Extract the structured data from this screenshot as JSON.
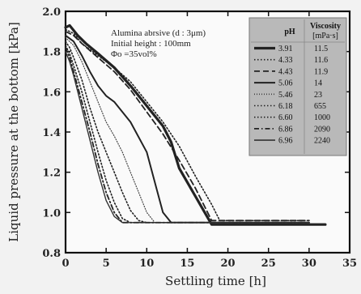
{
  "chart_data": {
    "type": "line",
    "xlabel": "Settling time  [h]",
    "ylabel": "Liquid pressure at the bottom [kPa]",
    "xlim": [
      0,
      35
    ],
    "ylim": [
      0.8,
      2.0
    ],
    "xticks": [
      "0",
      "5",
      "10",
      "15",
      "20",
      "25",
      "30",
      "35"
    ],
    "yticks": [
      "0.8",
      "1.0",
      "1.2",
      "1.4",
      "1.6",
      "1.8",
      "2.0"
    ],
    "annotation": [
      "Alumina abrsive (d : 3μm)",
      "Initial height : 100mm",
      "Φo =35vol%"
    ],
    "legend": {
      "placement": "top-right",
      "col1_header": "pH",
      "col2_header": "Viscosity",
      "col2_unit": "[mPa·s]",
      "background": "#b9b9b9"
    },
    "series": [
      {
        "name": "3.91",
        "viscosity": "11.5",
        "style": "solid-thick",
        "x": [
          0,
          0.5,
          1.5,
          2.5,
          4,
          6,
          8,
          10,
          12,
          13,
          14,
          16,
          18,
          32
        ],
        "y": [
          1.92,
          1.93,
          1.88,
          1.84,
          1.79,
          1.72,
          1.63,
          1.53,
          1.43,
          1.35,
          1.22,
          1.08,
          0.94,
          0.94
        ]
      },
      {
        "name": "4.33",
        "viscosity": "11.6",
        "style": "dotted",
        "x": [
          0,
          1,
          2,
          4,
          6,
          8,
          10,
          12,
          14,
          16,
          18,
          19,
          30
        ],
        "y": [
          1.91,
          1.89,
          1.84,
          1.78,
          1.72,
          1.65,
          1.55,
          1.45,
          1.33,
          1.18,
          1.04,
          0.96,
          0.96
        ]
      },
      {
        "name": "4.43",
        "viscosity": "11.9",
        "style": "dashed",
        "x": [
          0,
          1,
          2,
          4,
          6,
          8,
          10,
          12,
          14,
          16,
          18,
          30
        ],
        "y": [
          1.9,
          1.88,
          1.84,
          1.77,
          1.7,
          1.61,
          1.5,
          1.39,
          1.26,
          1.12,
          0.96,
          0.96
        ]
      },
      {
        "name": "5.06",
        "viscosity": "14",
        "style": "solid",
        "x": [
          0,
          1,
          2,
          3,
          4,
          5,
          6,
          8,
          10,
          11,
          12,
          13,
          30
        ],
        "y": [
          1.88,
          1.85,
          1.78,
          1.7,
          1.63,
          1.58,
          1.55,
          1.45,
          1.3,
          1.15,
          1.0,
          0.95,
          0.95
        ]
      },
      {
        "name": "5.46",
        "viscosity": "23",
        "style": "dotted-fine",
        "x": [
          0,
          1,
          2,
          3,
          4,
          5,
          6,
          7,
          8,
          9,
          10,
          11,
          30
        ],
        "y": [
          1.87,
          1.83,
          1.75,
          1.65,
          1.55,
          1.45,
          1.38,
          1.3,
          1.2,
          1.1,
          1.0,
          0.95,
          0.95
        ]
      },
      {
        "name": "6.18",
        "viscosity": "655",
        "style": "dotted",
        "x": [
          0,
          0.5,
          1,
          2,
          3,
          4,
          5,
          6,
          7,
          8,
          9,
          10,
          30
        ],
        "y": [
          1.85,
          1.82,
          1.77,
          1.66,
          1.52,
          1.4,
          1.3,
          1.2,
          1.1,
          1.01,
          0.96,
          0.95,
          0.95
        ]
      },
      {
        "name": "6.60",
        "viscosity": "1000",
        "style": "dotted",
        "x": [
          0,
          0.5,
          1,
          2,
          3,
          4,
          5,
          6,
          7,
          8,
          30
        ],
        "y": [
          1.83,
          1.79,
          1.73,
          1.6,
          1.45,
          1.3,
          1.16,
          1.05,
          0.97,
          0.95,
          0.95
        ]
      },
      {
        "name": "6.86",
        "viscosity": "2090",
        "style": "dash-dot",
        "x": [
          0,
          0.5,
          1,
          2,
          3,
          4,
          5,
          6,
          7,
          30
        ],
        "y": [
          1.82,
          1.77,
          1.7,
          1.55,
          1.4,
          1.24,
          1.1,
          1.0,
          0.95,
          0.95
        ]
      },
      {
        "name": "6.96",
        "viscosity": "2240",
        "style": "solid-thin",
        "x": [
          0,
          0.5,
          1,
          2,
          3,
          4,
          5,
          6,
          7,
          30
        ],
        "y": [
          1.8,
          1.75,
          1.68,
          1.52,
          1.36,
          1.2,
          1.06,
          0.98,
          0.95,
          0.95
        ]
      }
    ]
  }
}
